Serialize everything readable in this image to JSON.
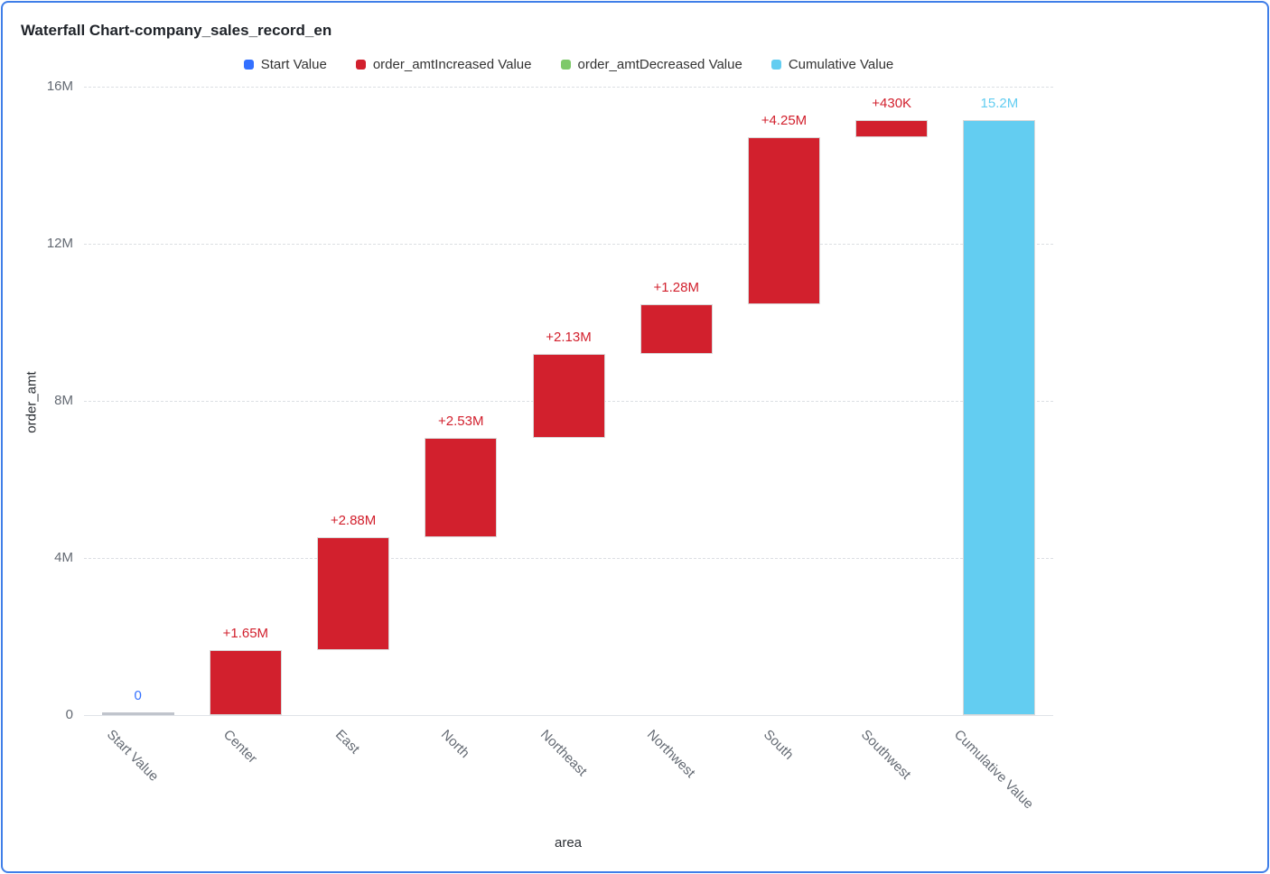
{
  "card": {
    "border_color": "#3f7ee8",
    "background": "#ffffff"
  },
  "chart_data": {
    "type": "bar",
    "subtype": "waterfall",
    "title": "Waterfall Chart-company_sales_record_en",
    "xlabel": "area",
    "ylabel": "order_amt",
    "ylim": [
      0,
      16000000
    ],
    "grid": "horizontal-dashed",
    "legend_position": "top-center",
    "yticks": [
      {
        "value": 0,
        "label": "0"
      },
      {
        "value": 4000000,
        "label": "4M"
      },
      {
        "value": 8000000,
        "label": "8M"
      },
      {
        "value": 12000000,
        "label": "12M"
      },
      {
        "value": 16000000,
        "label": "16M"
      }
    ],
    "legend": [
      {
        "label": "Start Value",
        "color": "#3370ff"
      },
      {
        "label": "order_amtIncreased Value",
        "color": "#d2202d"
      },
      {
        "label": "order_amtDecreased Value",
        "color": "#7ec96a"
      },
      {
        "label": "Cumulative Value",
        "color": "#63cdf1"
      }
    ],
    "bars": [
      {
        "category": "Start Value",
        "series": "Start Value",
        "start": 0,
        "end": 0,
        "delta_label": "0",
        "color": "#c0c4cc",
        "label_color": "#3370ff"
      },
      {
        "category": "Center",
        "series": "order_amtIncreased Value",
        "start": 0,
        "end": 1650000,
        "delta_label": "+1.65M",
        "color": "#d2202d",
        "label_color": "#d2202d"
      },
      {
        "category": "East",
        "series": "order_amtIncreased Value",
        "start": 1650000,
        "end": 4530000,
        "delta_label": "+2.88M",
        "color": "#d2202d",
        "label_color": "#d2202d"
      },
      {
        "category": "North",
        "series": "order_amtIncreased Value",
        "start": 4530000,
        "end": 7060000,
        "delta_label": "+2.53M",
        "color": "#d2202d",
        "label_color": "#d2202d"
      },
      {
        "category": "Northeast",
        "series": "order_amtIncreased Value",
        "start": 7060000,
        "end": 9190000,
        "delta_label": "+2.13M",
        "color": "#d2202d",
        "label_color": "#d2202d"
      },
      {
        "category": "Northwest",
        "series": "order_amtIncreased Value",
        "start": 9190000,
        "end": 10470000,
        "delta_label": "+1.28M",
        "color": "#d2202d",
        "label_color": "#d2202d"
      },
      {
        "category": "South",
        "series": "order_amtIncreased Value",
        "start": 10470000,
        "end": 14720000,
        "delta_label": "+4.25M",
        "color": "#d2202d",
        "label_color": "#d2202d"
      },
      {
        "category": "Southwest",
        "series": "order_amtIncreased Value",
        "start": 14720000,
        "end": 15150000,
        "delta_label": "+430K",
        "color": "#d2202d",
        "label_color": "#d2202d"
      },
      {
        "category": "Cumulative Value",
        "series": "Cumulative Value",
        "start": 0,
        "end": 15150000,
        "delta_label": "15.2M",
        "color": "#63cdf1",
        "label_color": "#63cdf1"
      }
    ]
  }
}
